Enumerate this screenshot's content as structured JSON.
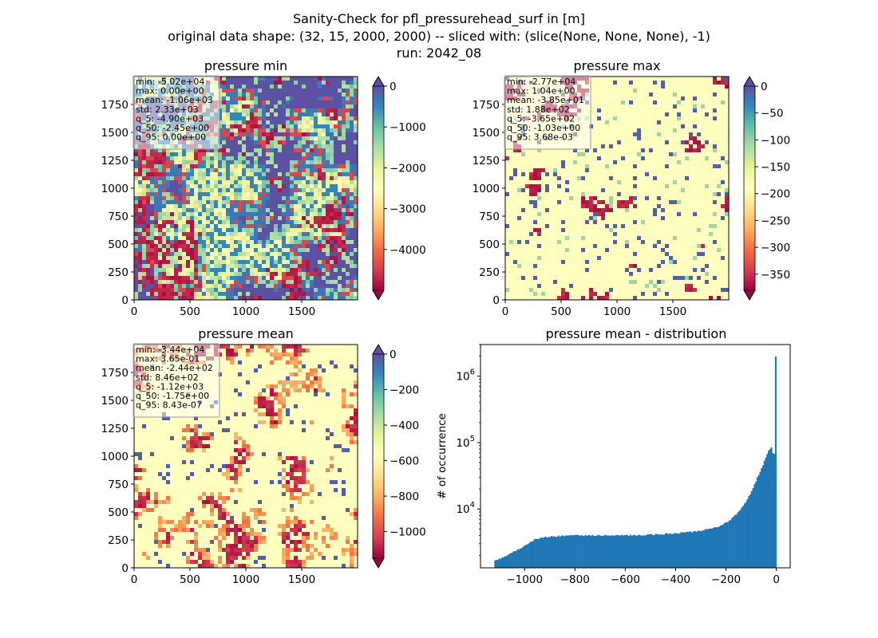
{
  "figure": {
    "title_lines": [
      "Sanity-Check for pfl_pressurehead_surf in [m]",
      "original data shape: (32, 15, 2000, 2000) -- sliced with: (slice(None, None, None), -1)",
      "run: 2042_08"
    ]
  },
  "colors": {
    "spectral": [
      "#9e0142",
      "#d53e4f",
      "#f46d43",
      "#fdae61",
      "#fee08b",
      "#ffffbf",
      "#e6f598",
      "#abdda4",
      "#66c2a5",
      "#3288bd",
      "#5e4fa2"
    ],
    "hist_bar": "#1f77b4"
  },
  "chart_data": [
    {
      "type": "heatmap",
      "title": "pressure min",
      "xticks": [
        0,
        500,
        1000,
        1500
      ],
      "yticks": [
        0,
        250,
        500,
        750,
        1000,
        1250,
        1500,
        1750
      ],
      "xlim": [
        0,
        2000
      ],
      "ylim": [
        0,
        2000
      ],
      "colorbar": {
        "vmin": -5000,
        "vmax": 0,
        "ticks": [
          0,
          -1000,
          -2000,
          -3000,
          -4000
        ],
        "extend": "both"
      },
      "stats": [
        "min: -5.02e+04",
        "max: 0.00e+00",
        "mean: -1.06e+03",
        "std: 2.33e+03",
        "q_5: -4.90e+03",
        "q_50: -2.45e+00",
        "q_95: 0.00e+00"
      ]
    },
    {
      "type": "heatmap",
      "title": "pressure max",
      "xticks": [
        0,
        500,
        1000,
        1500
      ],
      "yticks": [
        0,
        250,
        500,
        750,
        1000,
        1250,
        1500,
        1750
      ],
      "xlim": [
        0,
        2000
      ],
      "ylim": [
        0,
        2000
      ],
      "colorbar": {
        "vmin": -380,
        "vmax": 0,
        "ticks": [
          0,
          -50,
          -100,
          -150,
          -200,
          -250,
          -300,
          -350
        ],
        "extend": "both"
      },
      "stats": [
        "min: -2.77e+04",
        "max: 1.04e+00",
        "mean: -3.85e+01",
        "std: 1.88e+02",
        "q_5: -3.65e+02",
        "q_50: -1.03e+00",
        "q_95: 3.68e-03"
      ]
    },
    {
      "type": "heatmap",
      "title": "pressure mean",
      "xticks": [
        0,
        500,
        1000,
        1500
      ],
      "yticks": [
        0,
        250,
        500,
        750,
        1000,
        1250,
        1500,
        1750
      ],
      "xlim": [
        0,
        2000
      ],
      "ylim": [
        0,
        2000
      ],
      "colorbar": {
        "vmin": -1150,
        "vmax": 0,
        "ticks": [
          0,
          -200,
          -400,
          -600,
          -800,
          -1000
        ],
        "extend": "both"
      },
      "stats": [
        "min: -3.44e+04",
        "max: 3.65e-01",
        "mean: -2.44e+02",
        "std: 8.46e+02",
        "q_5: -1.12e+03",
        "q_50: -1.75e+00",
        "q_95: 8.43e-07"
      ]
    },
    {
      "type": "bar",
      "title": "pressure mean - distribution",
      "ylabel": "# of occurrence",
      "xlabel": "",
      "yscale": "log",
      "xlim": [
        -1175,
        55
      ],
      "ylim": [
        1300,
        3000000
      ],
      "xticks": [
        -1000,
        -800,
        -600,
        -400,
        -200,
        0
      ],
      "xtick_labels": [
        "−1000",
        "−800",
        "−600",
        "−400",
        "−200",
        "0"
      ],
      "yticks_major": [
        {
          "value": 10000,
          "base": "10",
          "exp": "4"
        },
        {
          "value": 100000,
          "base": "10",
          "exp": "5"
        },
        {
          "value": 1000000,
          "base": "10",
          "exp": "6"
        }
      ],
      "bin_range": [
        -1120,
        0
      ],
      "bin_width": 5.6,
      "counts_profile": [
        [
          -1120,
          1650
        ],
        [
          -1080,
          1900
        ],
        [
          -1040,
          2300
        ],
        [
          -1000,
          2800
        ],
        [
          -960,
          3500
        ],
        [
          -900,
          3850
        ],
        [
          -800,
          4000
        ],
        [
          -700,
          4000
        ],
        [
          -600,
          4000
        ],
        [
          -500,
          4100
        ],
        [
          -400,
          4300
        ],
        [
          -300,
          4700
        ],
        [
          -220,
          5600
        ],
        [
          -180,
          7000
        ],
        [
          -150,
          9000
        ],
        [
          -120,
          13000
        ],
        [
          -100,
          18000
        ],
        [
          -80,
          27000
        ],
        [
          -60,
          40000
        ],
        [
          -45,
          55000
        ],
        [
          -30,
          75000
        ],
        [
          -20,
          85000
        ],
        [
          -12,
          65000
        ],
        [
          -6,
          70000
        ],
        [
          0,
          2000000
        ]
      ]
    }
  ]
}
